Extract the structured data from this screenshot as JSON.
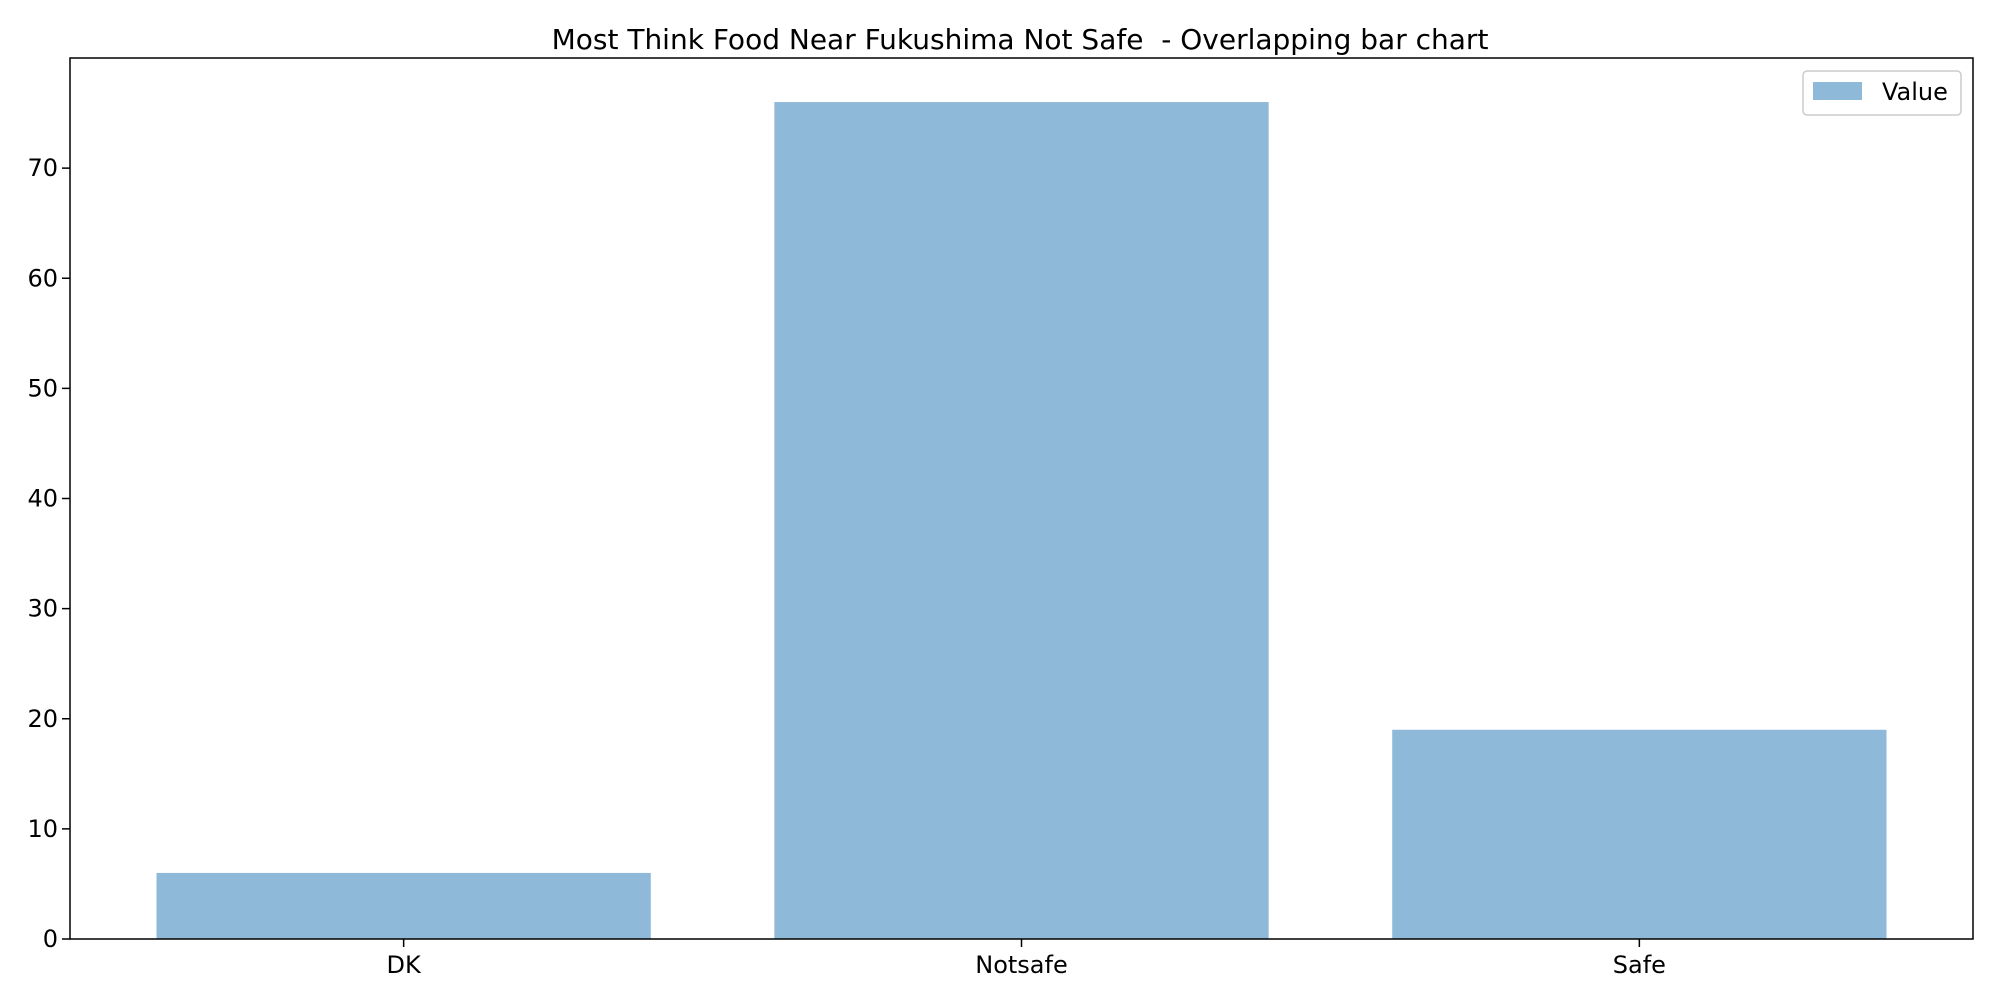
{
  "chart_data": {
    "type": "bar",
    "title": "Most Think Food Near Fukushima Not Safe  - Overlapping bar chart",
    "xlabel": "",
    "ylabel": "",
    "categories": [
      "DK",
      "Notsafe",
      "Safe"
    ],
    "series": [
      {
        "name": "Value",
        "color": "#8fb9d9",
        "values": [
          6,
          76,
          19
        ]
      }
    ],
    "ylim": [
      0,
      80
    ],
    "yticks": [
      0,
      10,
      20,
      30,
      40,
      50,
      60,
      70
    ],
    "grid": false,
    "legend_position": "top-right"
  }
}
